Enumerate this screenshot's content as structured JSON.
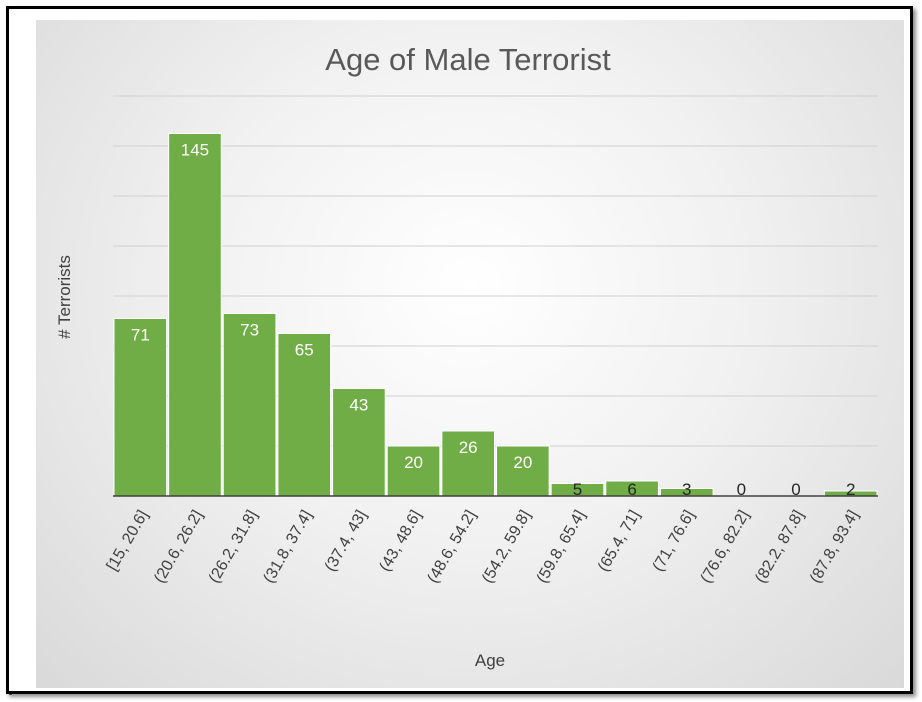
{
  "chart_data": {
    "type": "bar",
    "title": "Age of Male Terrorist",
    "xlabel": "Age",
    "ylabel": "# Terrorists",
    "categories": [
      "[15, 20.6]",
      "(20.6, 26.2]",
      "(26.2, 31.8]",
      "(31.8, 37.4]",
      "(37.4, 43]",
      "(43, 48.6]",
      "(48.6, 54.2]",
      "(54.2, 59.8]",
      "(59.8, 65.4]",
      "(65.4, 71]",
      "(71, 76.6]",
      "(76.6, 82.2]",
      "(82.2, 87.8]",
      "(87.8, 93.4]"
    ],
    "values": [
      71,
      145,
      73,
      65,
      43,
      20,
      26,
      20,
      5,
      6,
      3,
      0,
      0,
      2
    ],
    "ylim": [
      0,
      160
    ],
    "grid": true,
    "legend": "none",
    "colors": {
      "bar": "#70AD47",
      "gridline": "#d0d0d0",
      "axis": "#404040"
    }
  }
}
